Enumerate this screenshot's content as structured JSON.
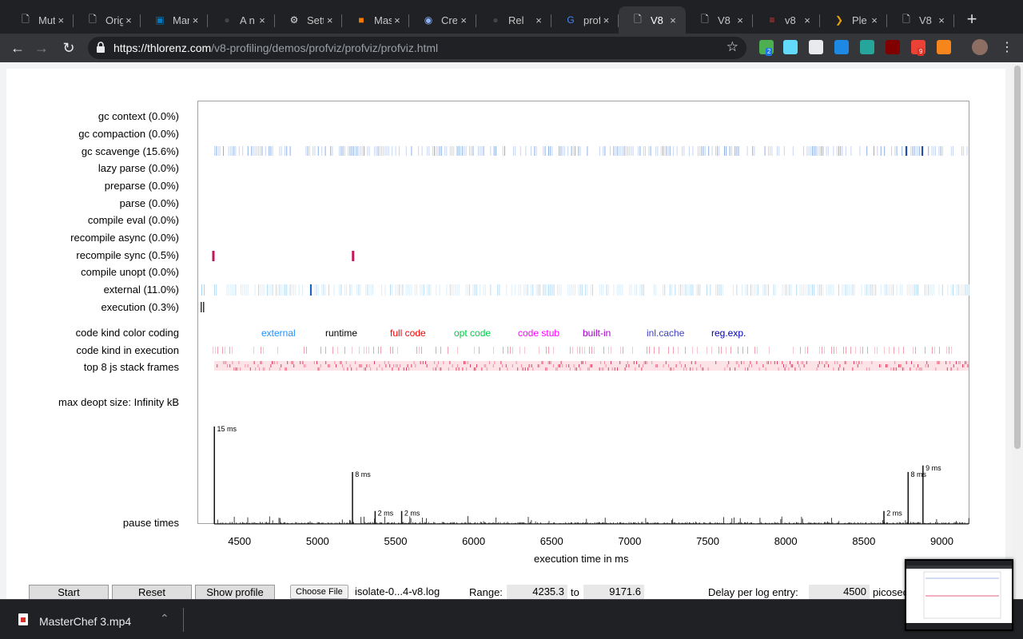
{
  "tabs": [
    {
      "title": "Mut",
      "icon": "document-icon"
    },
    {
      "title": "Orig",
      "icon": "document-icon"
    },
    {
      "title": "Mar",
      "icon": "trello-icon"
    },
    {
      "title": "A n",
      "icon": "github-icon"
    },
    {
      "title": "Sett",
      "icon": "gear-icon"
    },
    {
      "title": "Mas",
      "icon": "tve-icon"
    },
    {
      "title": "Cre",
      "icon": "chrome-icon"
    },
    {
      "title": "Rel",
      "icon": "github-icon"
    },
    {
      "title": "prof",
      "icon": "google-icon"
    },
    {
      "title": "V8",
      "icon": "document-icon",
      "active": true
    },
    {
      "title": "V8",
      "icon": "document-icon"
    },
    {
      "title": "v8",
      "icon": "flame-icon"
    },
    {
      "title": "Ple",
      "icon": "plex-icon"
    },
    {
      "title": "V8",
      "icon": "document-icon"
    }
  ],
  "address": {
    "host": "https://thlorenz.com",
    "path": "/v8-profiling/demos/profviz/profviz/profviz.html"
  },
  "extensions": [
    {
      "name": "download-extension-icon",
      "color": "#4caf50",
      "badge": "2"
    },
    {
      "name": "react-devtools-icon",
      "color": "#61dafb"
    },
    {
      "name": "page-icon",
      "color": "#e8eaed"
    },
    {
      "name": "s-extension-icon",
      "color": "#1e88e5"
    },
    {
      "name": "m-extension-icon",
      "color": "#26a69a"
    },
    {
      "name": "ublock-icon",
      "color": "#800000"
    },
    {
      "name": "gmail-icon",
      "color": "#ea4335",
      "badge": "9"
    },
    {
      "name": "metamask-icon",
      "color": "#f6851b"
    }
  ],
  "rows": {
    "gc_context": "gc context (0.0%)",
    "gc_compaction": "gc compaction (0.0%)",
    "gc_scavenge": "gc scavenge (15.6%)",
    "lazy_parse": "lazy parse (0.0%)",
    "preparse": "preparse (0.0%)",
    "parse": "parse (0.0%)",
    "compile_eval": "compile eval (0.0%)",
    "recompile_async": "recompile async (0.0%)",
    "recompile_sync": "recompile sync (0.5%)",
    "compile_unopt": "compile unopt (0.0%)",
    "external": "external (11.0%)",
    "execution": "execution (0.3%)",
    "code_kind_color_coding": "code kind color coding",
    "code_kind_in_execution": "code kind in execution",
    "top_frames": "top 8 js stack frames",
    "max_deopt": "max deopt size: Infinity kB",
    "pause_times": "pause times"
  },
  "legend": [
    {
      "label": "external",
      "color": "#1e90ff"
    },
    {
      "label": "runtime",
      "color": "#000000"
    },
    {
      "label": "full code",
      "color": "#ff0000"
    },
    {
      "label": "opt code",
      "color": "#00cc44"
    },
    {
      "label": "code stub",
      "color": "#ff00ff"
    },
    {
      "label": "built-in",
      "color": "#a000c0"
    },
    {
      "label": "inl.cache",
      "color": "#4040c0"
    },
    {
      "label": "reg.exp.",
      "color": "#0000c0"
    }
  ],
  "chart_data": {
    "type": "timeline",
    "xlabel": "execution time in ms",
    "xlim": [
      4235.3,
      9171.6
    ],
    "xticks": [
      "4500",
      "5000",
      "5500",
      "6000",
      "6500",
      "7000",
      "7500",
      "8000",
      "8500",
      "9000"
    ],
    "xtick_values": [
      4500,
      5000,
      5500,
      6000,
      6500,
      7000,
      7500,
      8000,
      8500,
      9000
    ],
    "pause_peaks": [
      {
        "x": 4335,
        "ms": 15,
        "label": "15 ms"
      },
      {
        "x": 5220,
        "ms": 8,
        "label": "8 ms"
      },
      {
        "x": 5365,
        "ms": 2,
        "label": "2 ms"
      },
      {
        "x": 5535,
        "ms": 2,
        "label": "2 ms"
      },
      {
        "x": 8625,
        "ms": 2,
        "label": "2 ms"
      },
      {
        "x": 8780,
        "ms": 8,
        "label": "8 ms"
      },
      {
        "x": 8875,
        "ms": 9,
        "label": "9 ms"
      }
    ],
    "recompile_sync_marks": [
      4330,
      5225
    ]
  },
  "controls": {
    "start": "Start",
    "reset": "Reset",
    "show_profile": "Show profile",
    "choose_file": "Choose File",
    "file_name": "isolate-0...4-v8.log",
    "range_label": "Range:",
    "range_from": "4235.3",
    "to_label": "to",
    "range_to": "9171.6",
    "delay_label": "Delay per log entry:",
    "delay_value": "4500",
    "delay_unit": "picosec"
  },
  "download": {
    "file": "MasterChef 3.mp4"
  }
}
